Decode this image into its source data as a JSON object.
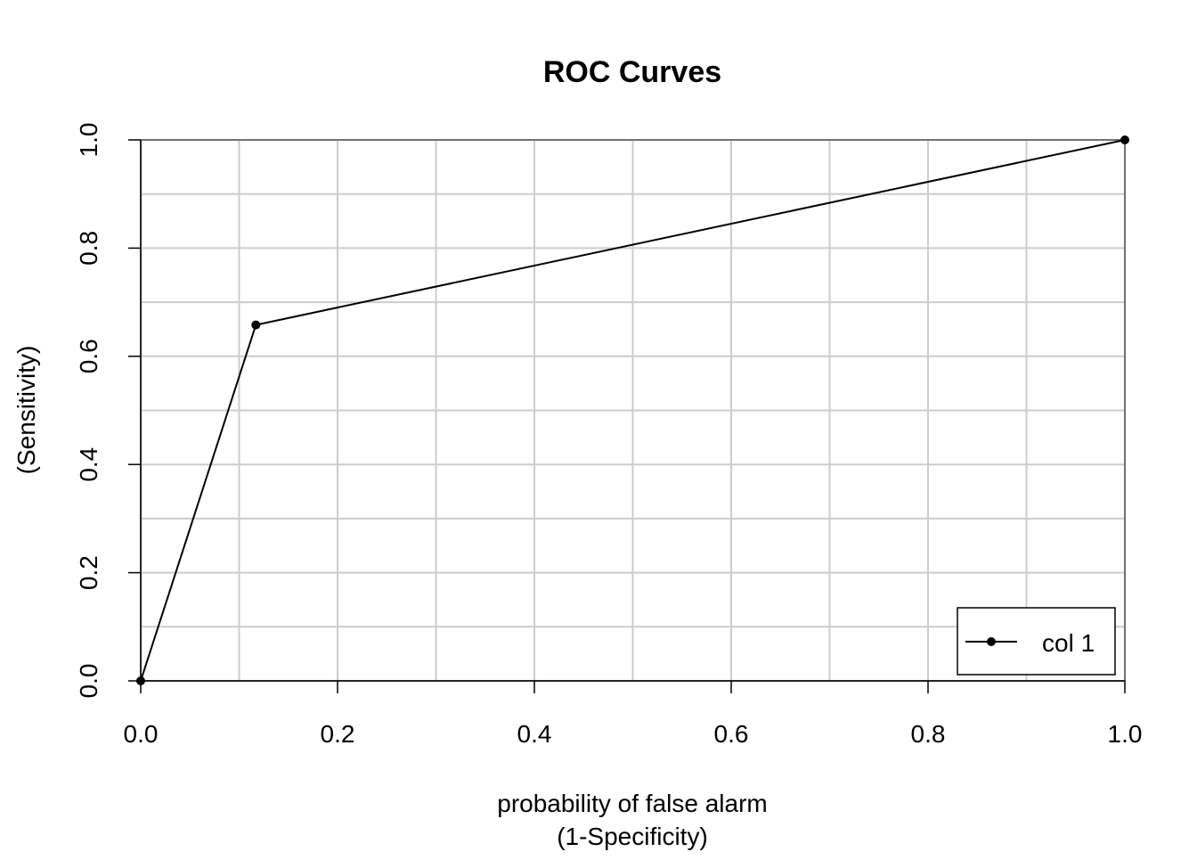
{
  "chart_data": {
    "type": "line",
    "title": "ROC Curves",
    "xlabel": [
      "probability of false alarm",
      "(1-Specificity)"
    ],
    "ylabel": "(Sensitivity)",
    "xlim": [
      0,
      1
    ],
    "ylim": [
      0,
      1
    ],
    "x_ticks": [
      "0.0",
      "0.2",
      "0.4",
      "0.6",
      "0.8",
      "1.0"
    ],
    "y_ticks": [
      "0.0",
      "0.2",
      "0.4",
      "0.6",
      "0.8",
      "1.0"
    ],
    "grid": true,
    "legend_position": "bottom-right",
    "series": [
      {
        "name": "col 1",
        "color": "#000000",
        "x": [
          0,
          0.117,
          1
        ],
        "y": [
          0,
          0.658,
          1
        ]
      }
    ]
  }
}
